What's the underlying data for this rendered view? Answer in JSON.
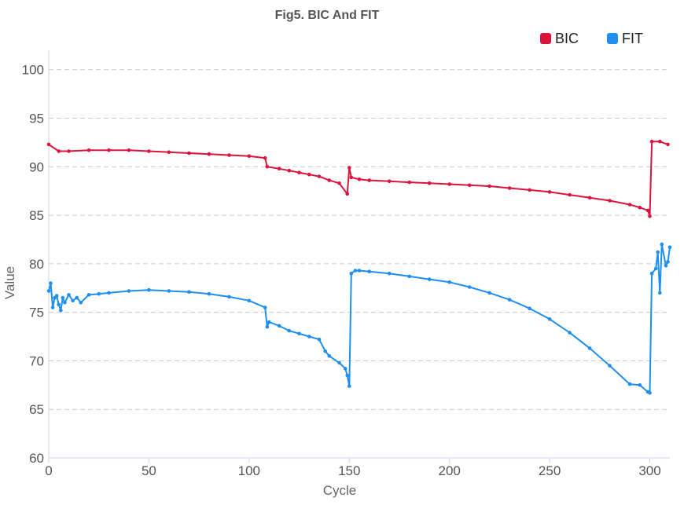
{
  "chart_data": {
    "type": "line",
    "title": "Fig5. BIC And FIT",
    "xlabel": "Cycle",
    "ylabel": "Value",
    "xlim": [
      0,
      310
    ],
    "ylim": [
      60,
      102
    ],
    "x_ticks": [
      0,
      50,
      100,
      150,
      200,
      250,
      300
    ],
    "y_ticks": [
      60,
      65,
      70,
      75,
      80,
      85,
      90,
      95,
      100
    ],
    "grid": true,
    "legend_position": "top-right",
    "series": [
      {
        "name": "BIC",
        "color": "#dc143c",
        "x": [
          0,
          5,
          10,
          20,
          30,
          40,
          50,
          60,
          70,
          80,
          90,
          100,
          108,
          109,
          115,
          120,
          125,
          130,
          135,
          140,
          145,
          149,
          150,
          151,
          155,
          160,
          170,
          180,
          190,
          200,
          210,
          220,
          230,
          240,
          250,
          260,
          270,
          280,
          290,
          295,
          299,
          300,
          301,
          305,
          309
        ],
        "y": [
          92.3,
          91.6,
          91.6,
          91.7,
          91.7,
          91.7,
          91.6,
          91.5,
          91.4,
          91.3,
          91.2,
          91.1,
          90.9,
          90.0,
          89.8,
          89.6,
          89.4,
          89.2,
          89.0,
          88.6,
          88.3,
          87.2,
          89.9,
          88.9,
          88.7,
          88.6,
          88.5,
          88.4,
          88.3,
          88.2,
          88.1,
          88.0,
          87.8,
          87.6,
          87.4,
          87.1,
          86.8,
          86.5,
          86.1,
          85.8,
          85.5,
          84.9,
          92.6,
          92.6,
          92.3
        ]
      },
      {
        "name": "FIT",
        "color": "#1e8ff0",
        "x": [
          0,
          1,
          2,
          3,
          4,
          5,
          6,
          7,
          8,
          10,
          12,
          14,
          16,
          20,
          25,
          30,
          40,
          50,
          60,
          70,
          80,
          90,
          100,
          108,
          109,
          110,
          115,
          120,
          125,
          130,
          135,
          138,
          140,
          145,
          148,
          149,
          150,
          151,
          153,
          155,
          160,
          170,
          180,
          190,
          200,
          210,
          220,
          230,
          240,
          250,
          260,
          270,
          280,
          290,
          295,
          299,
          300,
          301,
          303,
          304,
          305,
          306,
          308,
          309,
          310
        ],
        "y": [
          77.2,
          78.0,
          75.5,
          76.5,
          76.7,
          75.8,
          75.2,
          76.5,
          76.0,
          76.8,
          76.2,
          76.5,
          76.0,
          76.8,
          76.9,
          77.0,
          77.2,
          77.3,
          77.2,
          77.1,
          76.9,
          76.6,
          76.2,
          75.5,
          73.5,
          74.0,
          73.6,
          73.1,
          72.8,
          72.5,
          72.2,
          71.0,
          70.5,
          69.8,
          69.2,
          68.5,
          67.4,
          79.0,
          79.3,
          79.3,
          79.2,
          79.0,
          78.7,
          78.4,
          78.1,
          77.6,
          77.0,
          76.3,
          75.4,
          74.3,
          72.9,
          71.3,
          69.5,
          67.6,
          67.5,
          66.8,
          66.7,
          79.0,
          79.5,
          81.2,
          77.0,
          82.0,
          79.8,
          80.2,
          81.7
        ]
      }
    ]
  }
}
